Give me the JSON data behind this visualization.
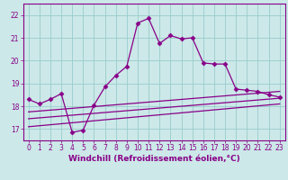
{
  "xlabel": "Windchill (Refroidissement éolien,°C)",
  "bg_color": "#cce8e8",
  "line_color": "#880088",
  "grid_color": "#99cccc",
  "xlim": [
    -0.5,
    23.5
  ],
  "ylim": [
    16.5,
    22.5
  ],
  "yticks": [
    17,
    18,
    19,
    20,
    21,
    22
  ],
  "xticks": [
    0,
    1,
    2,
    3,
    4,
    5,
    6,
    7,
    8,
    9,
    10,
    11,
    12,
    13,
    14,
    15,
    16,
    17,
    18,
    19,
    20,
    21,
    22,
    23
  ],
  "curve1_x": [
    0,
    1,
    2,
    3,
    4,
    5,
    6,
    7,
    8,
    9,
    10,
    11,
    12,
    13,
    14,
    15,
    16,
    17,
    18,
    19,
    20,
    21,
    22,
    23
  ],
  "curve1_y": [
    18.3,
    18.1,
    18.3,
    18.55,
    16.85,
    16.95,
    18.05,
    18.85,
    19.35,
    19.75,
    21.65,
    21.85,
    20.75,
    21.1,
    20.95,
    21.0,
    19.9,
    19.85,
    19.85,
    18.75,
    18.7,
    18.65,
    18.5,
    18.4
  ],
  "line1_x": [
    0,
    23
  ],
  "line1_y": [
    17.75,
    18.65
  ],
  "line2_x": [
    0,
    23
  ],
  "line2_y": [
    17.45,
    18.35
  ],
  "line3_x": [
    0,
    23
  ],
  "line3_y": [
    17.1,
    18.1
  ],
  "marker": "D",
  "markersize": 2.5,
  "linewidth": 0.9,
  "xlabel_fontsize": 6.5,
  "tick_fontsize": 5.5
}
